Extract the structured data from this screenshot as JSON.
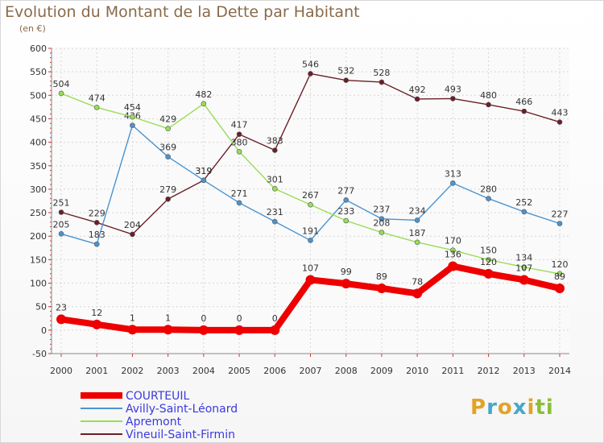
{
  "title": "Evolution du Montant de la Dette par Habitant",
  "unit": "(en €)",
  "logo": [
    "P",
    "r",
    "o",
    "x",
    "i",
    "ti"
  ],
  "chart_data": {
    "type": "line",
    "title": "Evolution du Montant de la Dette par Habitant",
    "ylabel": "(en €)",
    "xlabel": "",
    "x": [
      2000,
      2001,
      2002,
      2003,
      2004,
      2005,
      2006,
      2007,
      2008,
      2009,
      2010,
      2011,
      2012,
      2013,
      2014
    ],
    "yticks": [
      -50,
      0,
      50,
      100,
      150,
      200,
      250,
      300,
      350,
      400,
      450,
      500,
      550,
      600
    ],
    "ylim": [
      -50,
      600
    ],
    "grid": true,
    "legend": "bottom-left",
    "series": [
      {
        "name": "COURTEUIL",
        "color": "#ee0000",
        "values": [
          23,
          12,
          1,
          1,
          0,
          0,
          0,
          107,
          99,
          89,
          78,
          136,
          120,
          107,
          89
        ]
      },
      {
        "name": "Avilly-Saint-Léonard",
        "color": "#4b94cf",
        "values": [
          205,
          183,
          436,
          369,
          319,
          271,
          231,
          191,
          277,
          237,
          234,
          313,
          280,
          252,
          227
        ]
      },
      {
        "name": "Apremont",
        "color": "#99dd55",
        "values": [
          504,
          474,
          454,
          429,
          482,
          380,
          301,
          267,
          233,
          208,
          187,
          170,
          150,
          134,
          120
        ]
      },
      {
        "name": "Vineuil-Saint-Firmin",
        "color": "#6b1f26",
        "values": [
          251,
          229,
          204,
          279,
          319,
          417,
          383,
          546,
          532,
          528,
          492,
          493,
          480,
          466,
          443
        ]
      }
    ]
  }
}
